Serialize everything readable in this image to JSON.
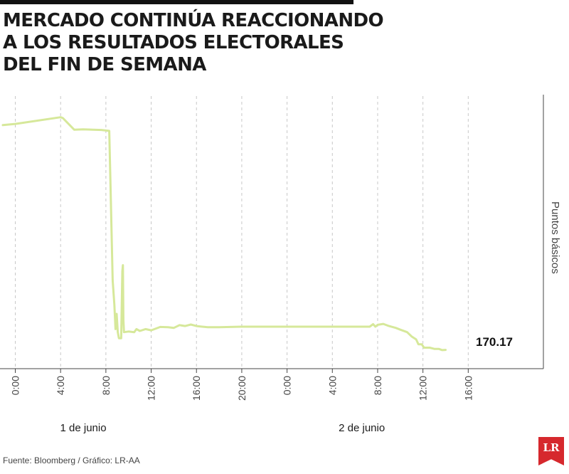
{
  "title_lines": [
    "MERCADO CONTINÚA REACCIONANDO",
    "A LOS RESULTADOS ELECTORALES",
    "DEL FIN DE SEMANA"
  ],
  "source": "Fuente: Bloomberg / Gráfico: LR-AA",
  "logo_text": "LR",
  "colors": {
    "line": "#d6e89a",
    "accent": "#d6282d",
    "grid": "#c8c8c8"
  },
  "chart_data": {
    "type": "line",
    "title": "MERCADO CONTINÚA REACCIONANDO A LOS RESULTADOS ELECTORALES DEL FIN DE SEMANA",
    "xlabel": "",
    "ylabel": "Puntos básicos",
    "x_unit": "hours since 1 de junio 0:00",
    "x_ticks": [
      {
        "x": 0,
        "label": "0:00"
      },
      {
        "x": 4,
        "label": "4:00"
      },
      {
        "x": 8,
        "label": "8:00"
      },
      {
        "x": 12,
        "label": "12:00"
      },
      {
        "x": 16,
        "label": "16:00"
      },
      {
        "x": 20,
        "label": "20:00"
      },
      {
        "x": 24,
        "label": "0:00"
      },
      {
        "x": 28,
        "label": "4:00"
      },
      {
        "x": 32,
        "label": "8:00"
      },
      {
        "x": 36,
        "label": "12:00"
      },
      {
        "x": 40,
        "label": "16:00"
      }
    ],
    "day_labels": [
      {
        "x": 6,
        "label": "1 de junio"
      },
      {
        "x": 30.6,
        "label": "2 de junio"
      }
    ],
    "last_value_label": "170.17",
    "grid": true,
    "series": [
      {
        "points": [
          [
            -1.1,
            244
          ],
          [
            0,
            244.4
          ],
          [
            4,
            246.6
          ],
          [
            4.2,
            246.3
          ],
          [
            5.2,
            242.5
          ],
          [
            6,
            242.6
          ],
          [
            7.6,
            242.4
          ],
          [
            8.3,
            242.1
          ],
          [
            8.4,
            226
          ],
          [
            8.6,
            193
          ],
          [
            8.75,
            185
          ],
          [
            8.85,
            177
          ],
          [
            8.95,
            182
          ],
          [
            9.05,
            176
          ],
          [
            9.15,
            174
          ],
          [
            9.35,
            174
          ],
          [
            9.45,
            196
          ],
          [
            9.5,
            198
          ],
          [
            9.55,
            180
          ],
          [
            9.6,
            176
          ],
          [
            10,
            176.2
          ],
          [
            10.5,
            176
          ],
          [
            10.7,
            177
          ],
          [
            11,
            176.4
          ],
          [
            11.5,
            177
          ],
          [
            12,
            176.6
          ],
          [
            12.8,
            177.7
          ],
          [
            13.5,
            177.6
          ],
          [
            14,
            177.4
          ],
          [
            14.5,
            178.3
          ],
          [
            15,
            178
          ],
          [
            15.5,
            178.5
          ],
          [
            16,
            178
          ],
          [
            16.5,
            177.8
          ],
          [
            17,
            177.6
          ],
          [
            18,
            177.6
          ],
          [
            20,
            177.8
          ],
          [
            24,
            177.8
          ],
          [
            28,
            177.8
          ],
          [
            31.3,
            177.8
          ],
          [
            31.6,
            178.6
          ],
          [
            31.8,
            177.8
          ],
          [
            32,
            178.4
          ],
          [
            32.5,
            178.7
          ],
          [
            33,
            178
          ],
          [
            33.6,
            177.4
          ],
          [
            34,
            176.8
          ],
          [
            34.6,
            176
          ],
          [
            35,
            174.6
          ],
          [
            35.4,
            173.6
          ],
          [
            35.6,
            172
          ],
          [
            35.9,
            172
          ],
          [
            36.1,
            170.9
          ],
          [
            36.6,
            170.9
          ],
          [
            37,
            170.5
          ],
          [
            37.4,
            170.5
          ],
          [
            37.7,
            170.1
          ],
          [
            38,
            170.17
          ]
        ]
      }
    ],
    "xlim": [
      -1.1,
      44
    ],
    "ylim": [
      164,
      254
    ]
  }
}
